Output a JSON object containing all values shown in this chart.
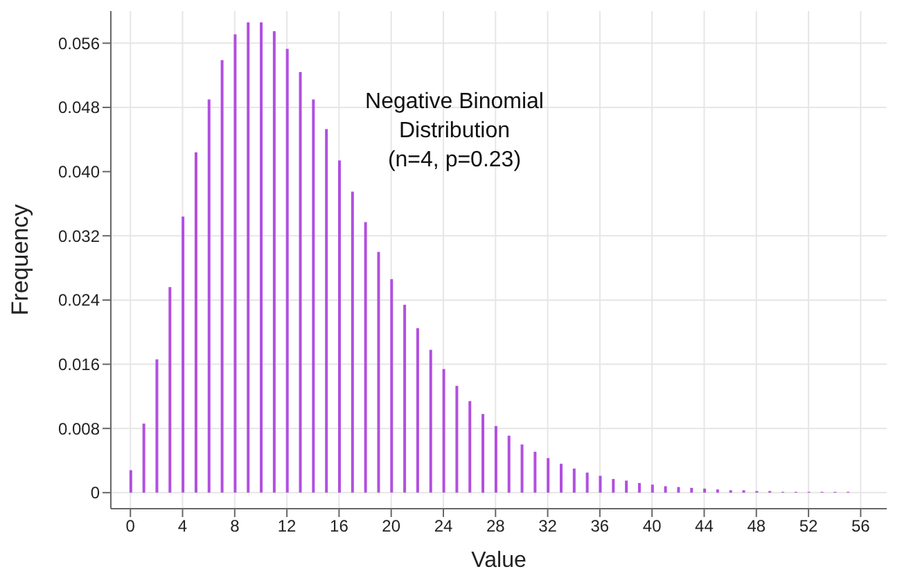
{
  "chart_data": {
    "type": "bar",
    "title": "Negative Binomial\nDistribution\n(n=4, p=0.23)",
    "xlabel": "Value",
    "ylabel": "Frequency",
    "x": [
      0,
      1,
      2,
      3,
      4,
      5,
      6,
      7,
      8,
      9,
      10,
      11,
      12,
      13,
      14,
      15,
      16,
      17,
      18,
      19,
      20,
      21,
      22,
      23,
      24,
      25,
      26,
      27,
      28,
      29,
      30,
      31,
      32,
      33,
      34,
      35,
      36,
      37,
      38,
      39,
      40,
      41,
      42,
      43,
      44,
      45,
      46,
      47,
      48,
      49,
      50,
      51,
      52,
      53,
      54,
      55
    ],
    "values": [
      0.0028,
      0.0086,
      0.0166,
      0.0256,
      0.0344,
      0.0424,
      0.049,
      0.0539,
      0.0571,
      0.0586,
      0.0586,
      0.0575,
      0.0553,
      0.0524,
      0.049,
      0.0453,
      0.0414,
      0.0375,
      0.0337,
      0.03,
      0.0266,
      0.0234,
      0.0205,
      0.0178,
      0.0154,
      0.0133,
      0.0114,
      0.0098,
      0.0083,
      0.0071,
      0.006,
      0.0051,
      0.0043,
      0.0036,
      0.003,
      0.0025,
      0.0021,
      0.0017,
      0.0015,
      0.0012,
      0.001,
      0.0008,
      0.0007,
      0.0006,
      0.0005,
      0.0004,
      0.0003,
      0.0003,
      0.0002,
      0.0002,
      0.0001,
      0.0001,
      0.0001,
      0.0001,
      0.0001,
      0.0001
    ],
    "color": "#b24fe0",
    "xlim": [
      -1.5,
      58
    ],
    "xticks": [
      0,
      4,
      8,
      12,
      16,
      20,
      24,
      28,
      32,
      36,
      40,
      44,
      48,
      52,
      56
    ],
    "ylim": [
      -0.002,
      0.06
    ],
    "yticks": [
      0,
      0.008,
      0.016,
      0.024,
      0.032,
      {
        "value": 0.04,
        "label": "0.040"
      },
      0.048,
      0.056
    ],
    "grid": true
  }
}
